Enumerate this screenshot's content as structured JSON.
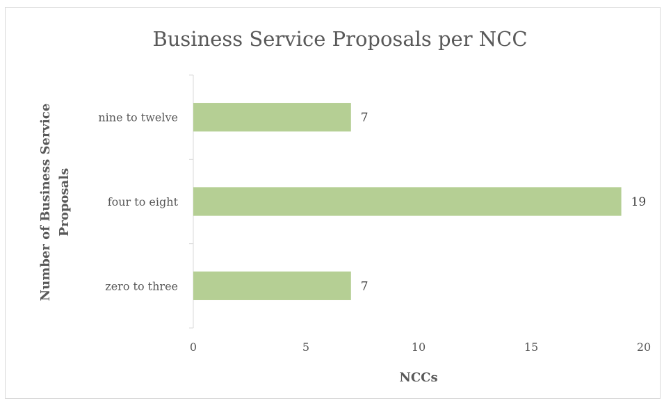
{
  "chart_data": {
    "type": "bar",
    "orientation": "horizontal",
    "title": "Business Service Proposals per NCC",
    "xlabel": "NCCs",
    "ylabel_lines": [
      "Number of Business Service",
      "Proposals"
    ],
    "categories": [
      "zero to three",
      "four to eight",
      "nine to twelve"
    ],
    "values": [
      7,
      19,
      7
    ],
    "data_labels": [
      "7",
      "19",
      "7"
    ],
    "xlim": [
      0,
      20
    ],
    "x_ticks": [
      0,
      5,
      10,
      15,
      20
    ],
    "x_tick_labels": [
      "0",
      "5",
      "10",
      "15",
      "20"
    ],
    "bar_color": "#b5cf94",
    "gridlines": false,
    "legend": false
  }
}
